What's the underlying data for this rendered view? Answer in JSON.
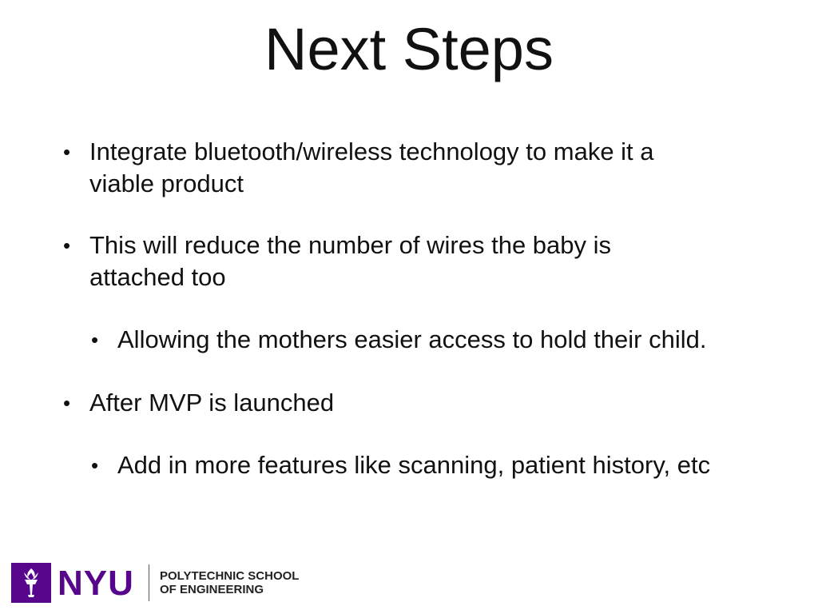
{
  "slide": {
    "title": "Next Steps",
    "bullets": [
      {
        "level": 1,
        "lines": [
          "Integrate bluetooth/wireless technology to make it a",
          "viable product"
        ]
      },
      {
        "level": 1,
        "lines": [
          "This will reduce the number of wires the baby is",
          "attached too"
        ]
      },
      {
        "level": 2,
        "lines": [
          "Allowing the mothers easier access to hold their child."
        ]
      },
      {
        "level": 1,
        "lines": [
          "After MVP is launched"
        ]
      },
      {
        "level": 2,
        "lines": [
          "Add in more features like scanning, patient history, etc"
        ]
      }
    ],
    "bullet_glyph": "•"
  },
  "footer": {
    "logo_icon": "torch-icon",
    "logo_wordmark": "NYU",
    "school_line_1": "POLYTECHNIC SCHOOL",
    "school_line_2": "OF ENGINEERING",
    "brand_color": "#57068c"
  }
}
